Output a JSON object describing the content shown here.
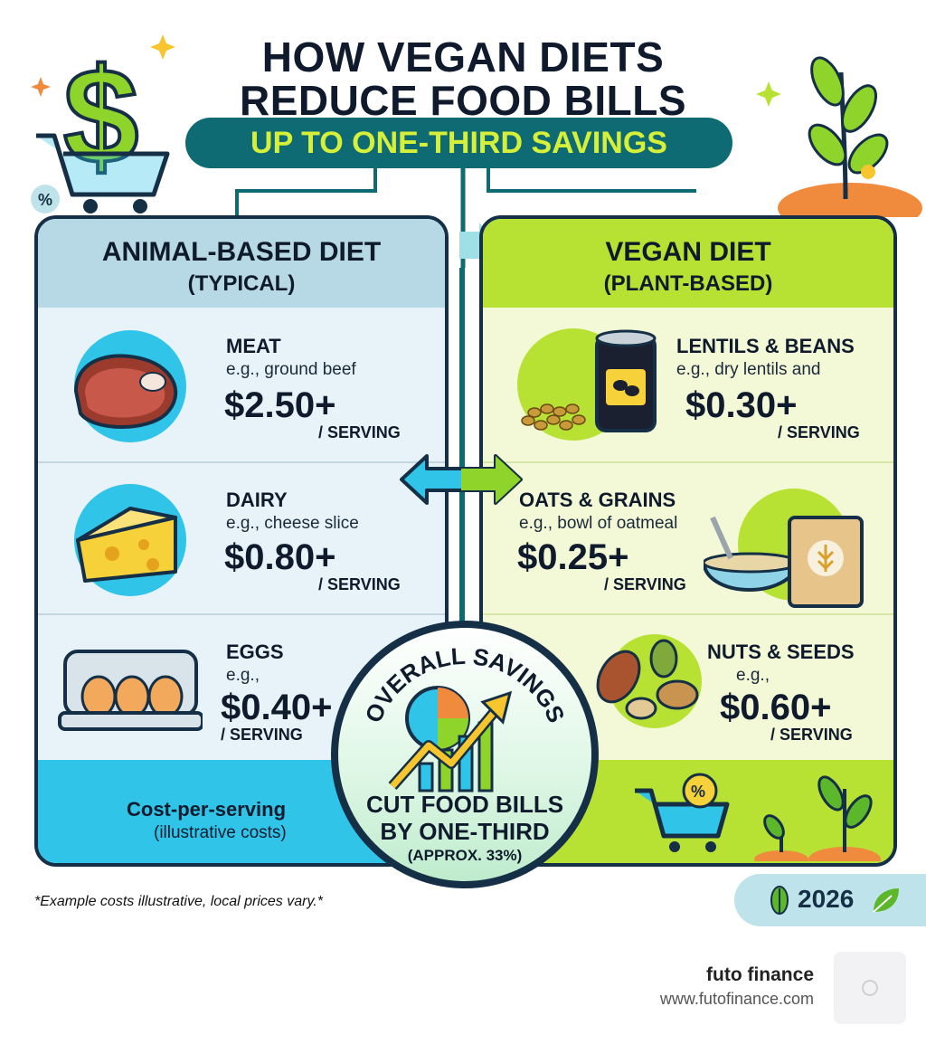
{
  "title_line1": "HOW VEGAN DIETS",
  "title_line2": "REDUCE FOOD BILLS",
  "subtitle": "UP TO ONE-THIRD SAVINGS",
  "left": {
    "heading": "ANIMAL-BASED DIET",
    "subheading": "(TYPICAL)",
    "items": [
      {
        "category": "MEAT",
        "example": "e.g., ground beef",
        "price": "$2.50+",
        "unit": "/ SERVING",
        "icon": "steak-icon"
      },
      {
        "category": "DAIRY",
        "example": "e.g., cheese slice",
        "price": "$0.80+",
        "unit": "/ SERVING",
        "icon": "cheese-icon"
      },
      {
        "category": "EGGS",
        "example": "e.g.,",
        "price": "$0.40+",
        "unit": "/ SERVING",
        "icon": "egg-carton-icon"
      }
    ],
    "footer_title": "Cost-per-serving",
    "footer_sub": "(illustrative costs)"
  },
  "right": {
    "heading": "VEGAN DIET",
    "subheading": "(PLANT-BASED)",
    "items": [
      {
        "category": "LENTILS & BEANS",
        "example": "e.g., dry lentils and",
        "price": "$0.30+",
        "unit": "/ SERVING",
        "icon": "bean-can-icon"
      },
      {
        "category": "OATS & GRAINS",
        "example": "e.g., bowl of oatmeal",
        "price": "$0.25+",
        "unit": "/ SERVING",
        "icon": "oatmeal-bowl-icon"
      },
      {
        "category": "NUTS & SEEDS",
        "example": "e.g.,",
        "price": "$0.60+",
        "unit": "/ SERVING",
        "icon": "nuts-icon"
      }
    ]
  },
  "center": {
    "arc_text": "OVERALL SAVINGS",
    "line1": "CUT FOOD BILLS",
    "line2": "BY ONE-THIRD",
    "line3": "(APPROX. 33%)"
  },
  "footnote": "*Example costs illustrative, local prices vary.*",
  "year": "2026",
  "brand_name": "futo finance",
  "brand_url": "www.futofinance.com",
  "colors": {
    "teal": "#0f6b73",
    "lime": "#b8e233",
    "navy": "#153046",
    "cyan": "#2fc4e8"
  }
}
